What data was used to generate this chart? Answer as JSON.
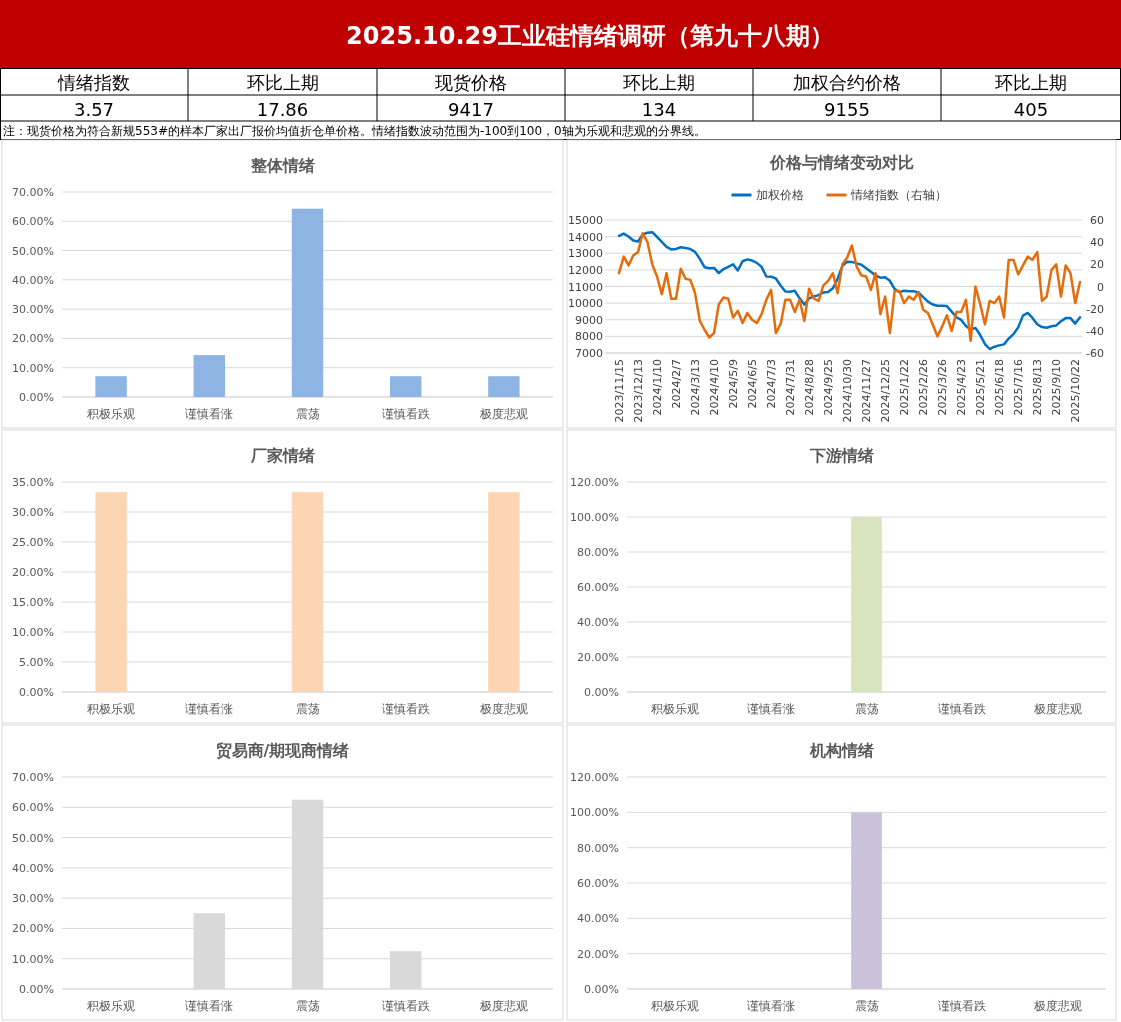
{
  "chart_data": [
    {
      "type": "other",
      "title": "2025.10.29工业硅情绪调研（第九十八期）",
      "annotations": [
        "情绪指数",
        "环比上期",
        "现货价格",
        "环比上期",
        "加权合约价格",
        "环比上期",
        "3.57",
        "17.86",
        "9417",
        "134",
        "9155",
        "405",
        "注：现货价格为符合新规553#的样本厂家出厂报价均值折仓单价格。情绪指数波动范围为-100到100，0轴为乐观和悲观的分界线。"
      ]
    },
    {
      "type": "bar",
      "title": "整体情绪",
      "categories": [
        "积极乐观",
        "谨慎看涨",
        "震荡",
        "谨慎看跌",
        "极度悲观"
      ],
      "values": [
        7.1,
        14.3,
        64.3,
        7.1,
        7.1
      ],
      "color": "#8eb4e3",
      "ylim": [
        0,
        70
      ],
      "yticks": [
        {
          "value": 0,
          "label": "0.00%"
        },
        {
          "value": 10,
          "label": "10.00%"
        },
        {
          "value": 20,
          "label": "20.00%"
        },
        {
          "value": 30,
          "label": "30.00%"
        },
        {
          "value": 40,
          "label": "40.00%"
        },
        {
          "value": 50,
          "label": "50.00%"
        },
        {
          "value": 60,
          "label": "60.00%"
        },
        {
          "value": 70,
          "label": "70.00%"
        }
      ],
      "grid": "y"
    },
    {
      "type": "line",
      "title": "价格与情绪变动对比",
      "categories": [
        "2023/11/15",
        null,
        null,
        null,
        "2023/12/13",
        null,
        null,
        null,
        "2024/1/10",
        null,
        null,
        null,
        "2024/2/7",
        null,
        null,
        null,
        "2024/3/13",
        null,
        null,
        null,
        "2024/4/10",
        null,
        null,
        null,
        "2024/5/9",
        null,
        null,
        null,
        "2024/6/5",
        null,
        null,
        null,
        "2024/7/3",
        null,
        null,
        null,
        "2024/7/31",
        null,
        null,
        null,
        "2024/8/28",
        null,
        null,
        null,
        "2024/9/25",
        null,
        null,
        null,
        "2024/10/30",
        null,
        null,
        null,
        "2024/11/27",
        null,
        null,
        null,
        "2024/12/25",
        null,
        null,
        null,
        "2025/1/22",
        null,
        null,
        null,
        "2025/2/26",
        null,
        null,
        null,
        "2025/3/26",
        null,
        null,
        null,
        "2025/4/23",
        null,
        null,
        null,
        "2025/5/21",
        null,
        null,
        null,
        "2025/6/18",
        null,
        null,
        null,
        "2025/7/16",
        null,
        null,
        null,
        "2025/8/13",
        null,
        null,
        null,
        "2025/9/10",
        null,
        null,
        null,
        "2025/10/22",
        null
      ],
      "series": [
        {
          "name": "加权价格",
          "color": "#0070c0",
          "values": [
            14040,
            14180,
            14010,
            13770,
            13710,
            14130,
            14240,
            14270,
            13990,
            13690,
            13380,
            13230,
            13260,
            13360,
            13310,
            13250,
            13080,
            12660,
            12160,
            12100,
            12120,
            11810,
            12050,
            12180,
            12340,
            11960,
            12520,
            12630,
            12560,
            12420,
            12180,
            11600,
            11590,
            11480,
            11060,
            10700,
            10690,
            10740,
            10290,
            9910,
            10280,
            10400,
            10480,
            10640,
            10670,
            10890,
            11470,
            12240,
            12490,
            12480,
            12390,
            12310,
            12100,
            11890,
            11660,
            11530,
            11560,
            11340,
            10840,
            10660,
            10740,
            10720,
            10710,
            10640,
            10360,
            10090,
            9920,
            9840,
            9840,
            9820,
            9490,
            9150,
            8990,
            8620,
            8410,
            8510,
            8080,
            7540,
            7240,
            7380,
            7460,
            7520,
            7870,
            8140,
            8540,
            9250,
            9410,
            9110,
            8730,
            8560,
            8520,
            8610,
            8660,
            8910,
            9100,
            9100,
            8770,
            9150
          ]
        },
        {
          "name": "情绪指数（右轴）",
          "color": "#e46c0a",
          "axis": "y2",
          "values": [
            12,
            27,
            19,
            28,
            31,
            48,
            40,
            20,
            9,
            -7,
            12,
            -11,
            -11,
            16,
            7,
            6,
            -6,
            -31,
            -39,
            -46,
            -42,
            -16,
            -10,
            -11,
            -28,
            -22,
            -33,
            -24,
            -30,
            -33,
            -25,
            -12,
            -3,
            -42,
            -34,
            -12,
            -12,
            -23,
            -12,
            -31,
            -2,
            -11,
            -13,
            1,
            5,
            12,
            -6,
            20,
            26,
            37,
            18,
            10,
            9,
            -3,
            12,
            -25,
            -9,
            -42,
            -4,
            -4,
            -15,
            -9,
            -12,
            -5,
            -21,
            -24,
            -34,
            -45,
            -36,
            -26,
            -40,
            -23,
            -23,
            -12,
            -49,
            0,
            -16,
            -34,
            -13,
            -15,
            -9,
            -28,
            24,
            24,
            11,
            19,
            27,
            24,
            31,
            -13,
            -9,
            15,
            20,
            -9,
            19,
            12,
            -15,
            4
          ]
        }
      ],
      "ylim": [
        7000,
        15000
      ],
      "yticks": [
        7000,
        8000,
        9000,
        10000,
        11000,
        12000,
        13000,
        14000,
        15000
      ],
      "y2lim": [
        -60,
        60
      ],
      "y2ticks": [
        -60,
        -40,
        -20,
        0,
        20,
        40,
        60
      ],
      "grid": "y",
      "legend": "top"
    },
    {
      "type": "bar",
      "title": "厂家情绪",
      "categories": [
        "积极乐观",
        "谨慎看涨",
        "震荡",
        "谨慎看跌",
        "极度悲观"
      ],
      "values": [
        33.3,
        0,
        33.3,
        0,
        33.3
      ],
      "color": "#fcd5b5",
      "ylim": [
        0,
        35
      ],
      "yticks": [
        {
          "value": 0,
          "label": "0.00%"
        },
        {
          "value": 5,
          "label": "5.00%"
        },
        {
          "value": 10,
          "label": "10.00%"
        },
        {
          "value": 15,
          "label": "15.00%"
        },
        {
          "value": 20,
          "label": "20.00%"
        },
        {
          "value": 25,
          "label": "25.00%"
        },
        {
          "value": 30,
          "label": "30.00%"
        },
        {
          "value": 35,
          "label": "35.00%"
        }
      ],
      "grid": "y"
    },
    {
      "type": "bar",
      "title": "下游情绪",
      "categories": [
        "积极乐观",
        "谨慎看涨",
        "震荡",
        "谨慎看跌",
        "极度悲观"
      ],
      "values": [
        0,
        0,
        100,
        0,
        0
      ],
      "color": "#d7e4bd",
      "ylim": [
        0,
        120
      ],
      "yticks": [
        {
          "value": 0,
          "label": "0.00%"
        },
        {
          "value": 20,
          "label": "20.00%"
        },
        {
          "value": 40,
          "label": "40.00%"
        },
        {
          "value": 60,
          "label": "60.00%"
        },
        {
          "value": 80,
          "label": "80.00%"
        },
        {
          "value": 100,
          "label": "100.00%"
        },
        {
          "value": 120,
          "label": "120.00%"
        }
      ],
      "grid": "y"
    },
    {
      "type": "bar",
      "title": "贸易商/期现商情绪",
      "categories": [
        "积极乐观",
        "谨慎看涨",
        "震荡",
        "谨慎看跌",
        "极度悲观"
      ],
      "values": [
        0,
        25,
        62.5,
        12.5,
        0
      ],
      "color": "#d9d9d9",
      "ylim": [
        0,
        70
      ],
      "yticks": [
        {
          "value": 0,
          "label": "0.00%"
        },
        {
          "value": 10,
          "label": "10.00%"
        },
        {
          "value": 20,
          "label": "20.00%"
        },
        {
          "value": 30,
          "label": "30.00%"
        },
        {
          "value": 40,
          "label": "40.00%"
        },
        {
          "value": 50,
          "label": "50.00%"
        },
        {
          "value": 60,
          "label": "60.00%"
        },
        {
          "value": 70,
          "label": "70.00%"
        }
      ],
      "grid": "y"
    },
    {
      "type": "bar",
      "title": "机构情绪",
      "categories": [
        "积极乐观",
        "谨慎看涨",
        "震荡",
        "谨慎看跌",
        "极度悲观"
      ],
      "values": [
        0,
        0,
        100,
        0,
        0
      ],
      "color": "#ccc1da",
      "ylim": [
        0,
        120
      ],
      "yticks": [
        {
          "value": 0,
          "label": "0.00%"
        },
        {
          "value": 20,
          "label": "20.00%"
        },
        {
          "value": 40,
          "label": "40.00%"
        },
        {
          "value": 60,
          "label": "60.00%"
        },
        {
          "value": 80,
          "label": "80.00%"
        },
        {
          "value": 100,
          "label": "100.00%"
        },
        {
          "value": 120,
          "label": "120.00%"
        }
      ],
      "grid": "y"
    }
  ]
}
